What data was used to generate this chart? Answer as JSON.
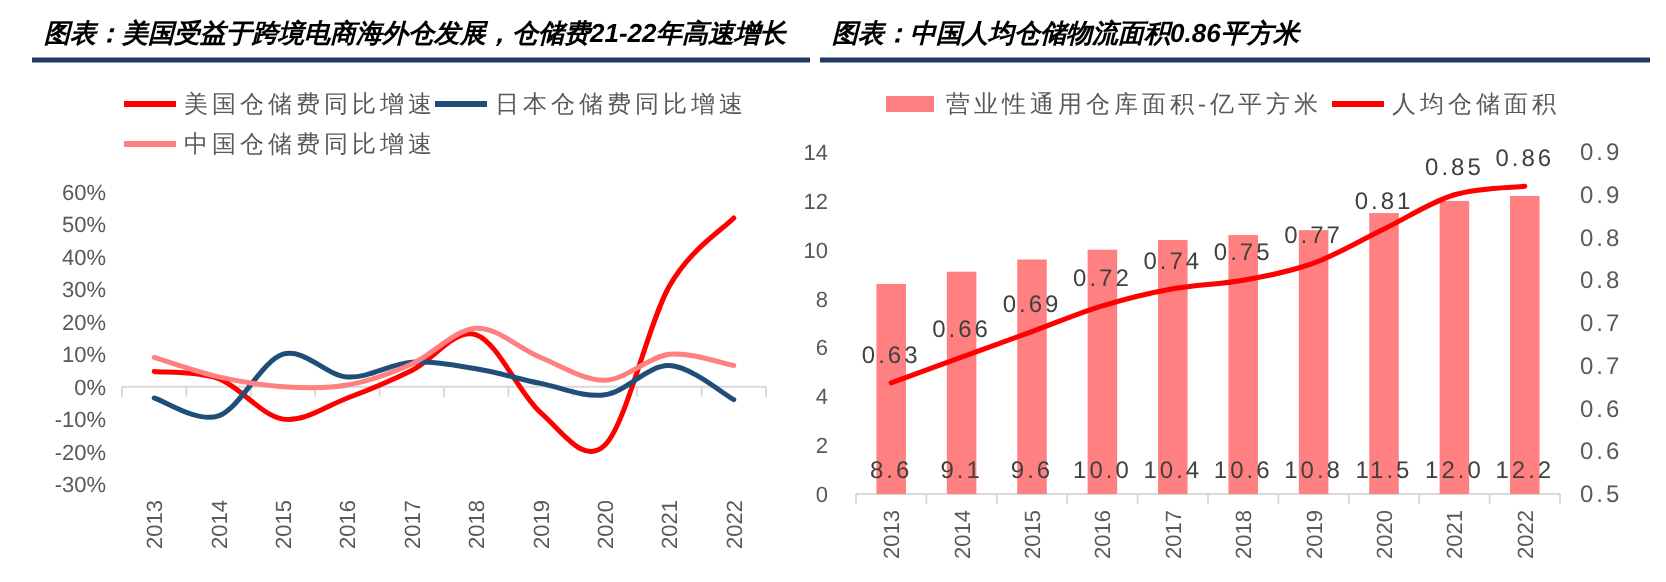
{
  "chart_data": [
    {
      "type": "line",
      "title": "图表：美国受益于跨境电商海外仓发展，仓储费21-22年高速增长",
      "categories": [
        "2013",
        "2014",
        "2015",
        "2016",
        "2017",
        "2018",
        "2019",
        "2020",
        "2021",
        "2022"
      ],
      "series": [
        {
          "name": "美国仓储费同比增速",
          "color": "#ff0000",
          "values": [
            4.7,
            2.5,
            -10,
            -3.5,
            5,
            16,
            -8,
            -18,
            31,
            52
          ]
        },
        {
          "name": "日本仓储费同比增速",
          "color": "#1f4e79",
          "values": [
            -3.5,
            -9,
            10,
            3,
            7.5,
            5.5,
            1,
            -2.5,
            6.5,
            -4
          ]
        },
        {
          "name": "中国仓储费同比增速",
          "color": "#ff8080",
          "values": [
            9,
            3,
            0,
            0.5,
            7,
            18,
            9,
            2,
            10,
            6.5
          ]
        }
      ],
      "ylim": [
        -30,
        60
      ],
      "yticks": [
        {
          "value": -30,
          "label": "-30%"
        },
        {
          "value": -20,
          "label": "-20%"
        },
        {
          "value": -10,
          "label": "-10%"
        },
        {
          "value": 0,
          "label": "0%"
        },
        {
          "value": 10,
          "label": "10%"
        },
        {
          "value": 20,
          "label": "20%"
        },
        {
          "value": 30,
          "label": "30%"
        },
        {
          "value": 40,
          "label": "40%"
        },
        {
          "value": 50,
          "label": "50%"
        },
        {
          "value": 60,
          "label": "60%"
        }
      ],
      "legend": "top"
    },
    {
      "type": "bar",
      "title": "图表：中国人均仓储物流面积0.86平方米",
      "categories": [
        "2013",
        "2014",
        "2015",
        "2016",
        "2017",
        "2018",
        "2019",
        "2020",
        "2021",
        "2022"
      ],
      "series": [
        {
          "name": "营业性通用仓库面积-亿平方米",
          "type": "bar",
          "color": "#ff8080",
          "values": [
            8.6,
            9.1,
            9.6,
            10.0,
            10.4,
            10.6,
            10.8,
            11.5,
            12.0,
            12.2
          ],
          "value_labels": [
            "8.6",
            "9.1",
            "9.6",
            "10.0",
            "10.4",
            "10.6",
            "10.8",
            "11.5",
            "12.0",
            "12.2"
          ]
        },
        {
          "name": "人均仓储面积",
          "type": "line",
          "axis": "y2",
          "color": "#ff0000",
          "values": [
            0.63,
            0.66,
            0.69,
            0.72,
            0.74,
            0.75,
            0.77,
            0.81,
            0.85,
            0.86
          ],
          "value_labels": [
            "0.63",
            "0.66",
            "0.69",
            "0.72",
            "0.74",
            "0.75",
            "0.77",
            "0.81",
            "0.85",
            "0.86"
          ]
        }
      ],
      "ylim": [
        0,
        14
      ],
      "yticks": [
        0,
        2,
        4,
        6,
        8,
        10,
        12,
        14
      ],
      "y2lim": [
        0.5,
        0.9
      ],
      "y2ticks": [
        {
          "value": 0.5,
          "label": "0.5"
        },
        {
          "value": 0.55,
          "label": "0.6"
        },
        {
          "value": 0.6,
          "label": "0.6"
        },
        {
          "value": 0.65,
          "label": "0.7"
        },
        {
          "value": 0.7,
          "label": "0.7"
        },
        {
          "value": 0.75,
          "label": "0.8"
        },
        {
          "value": 0.8,
          "label": "0.8"
        },
        {
          "value": 0.85,
          "label": "0.9"
        },
        {
          "value": 0.9,
          "label": "0.9"
        }
      ],
      "legend": "top"
    }
  ]
}
